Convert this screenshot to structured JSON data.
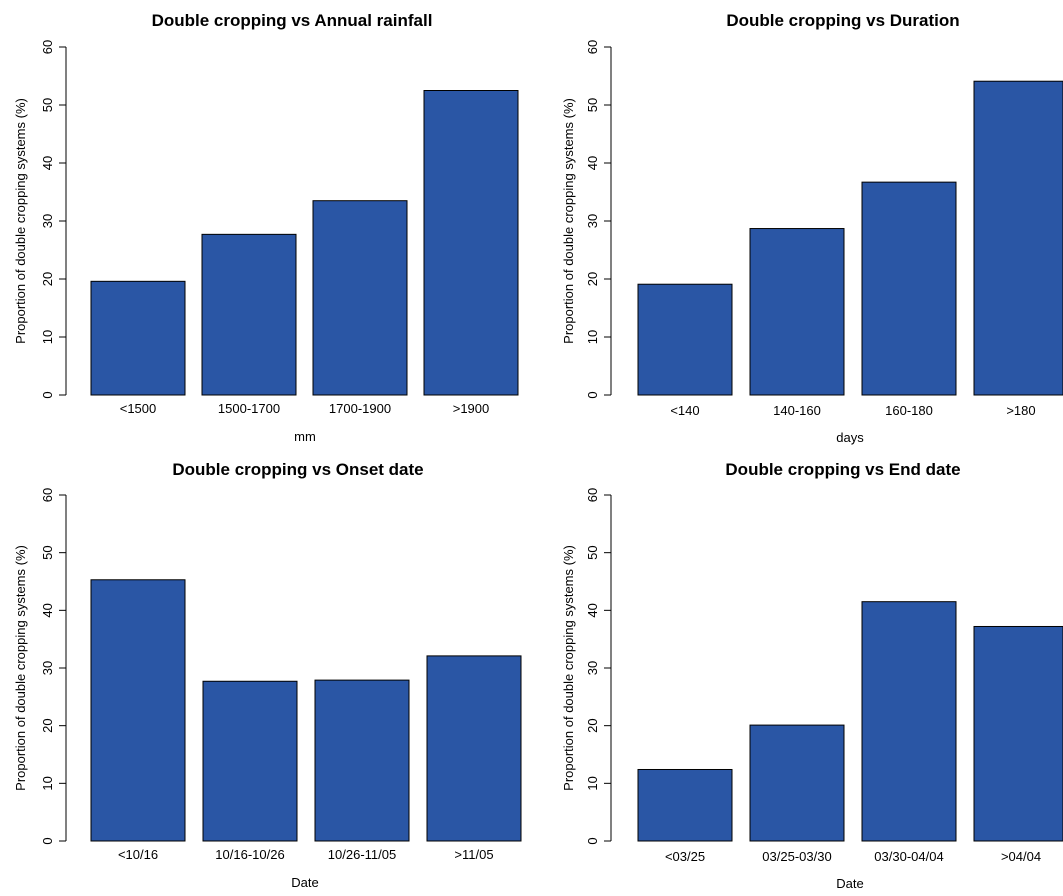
{
  "chart_data": [
    {
      "type": "bar",
      "title": "Double cropping vs Annual rainfall",
      "xlabel": "mm",
      "ylabel": "Proportion of double cropping systems (%)",
      "categories": [
        "<1500",
        "1500-1700",
        "1700-1900",
        ">1900"
      ],
      "values": [
        19.6,
        27.7,
        33.5,
        52.5
      ],
      "ylim": [
        0,
        60
      ],
      "yticks": [
        0,
        10,
        20,
        30,
        40,
        50,
        60
      ],
      "bar_color": "#2a56a5",
      "grid": false,
      "legend": "none"
    },
    {
      "type": "bar",
      "title": "Double cropping vs Duration",
      "xlabel": "days",
      "ylabel": "Proportion of double cropping systems (%)",
      "categories": [
        "<140",
        "140-160",
        "160-180",
        ">180"
      ],
      "values": [
        19.1,
        28.7,
        36.7,
        54.1
      ],
      "ylim": [
        0,
        60
      ],
      "yticks": [
        0,
        10,
        20,
        30,
        40,
        50,
        60
      ],
      "bar_color": "#2a56a5",
      "grid": false,
      "legend": "none"
    },
    {
      "type": "bar",
      "title": "Double cropping vs Onset date",
      "xlabel": "Date",
      "ylabel": "Proportion of double cropping systems (%)",
      "categories": [
        "<10/16",
        "10/16-10/26",
        "10/26-11/05",
        ">11/05"
      ],
      "values": [
        45.3,
        27.7,
        27.9,
        32.1
      ],
      "ylim": [
        0,
        60
      ],
      "yticks": [
        0,
        10,
        20,
        30,
        40,
        50,
        60
      ],
      "bar_color": "#2a56a5",
      "grid": false,
      "legend": "none"
    },
    {
      "type": "bar",
      "title": "Double cropping vs End date",
      "xlabel": "Date",
      "ylabel": "Proportion of double cropping systems (%)",
      "categories": [
        "<03/25",
        "03/25-03/30",
        "03/30-04/04",
        ">04/04"
      ],
      "values": [
        12.4,
        20.1,
        41.5,
        37.2
      ],
      "ylim": [
        0,
        60
      ],
      "yticks": [
        0,
        10,
        20,
        30,
        40,
        50,
        60
      ],
      "bar_color": "#2a56a5",
      "grid": false,
      "legend": "none"
    }
  ]
}
